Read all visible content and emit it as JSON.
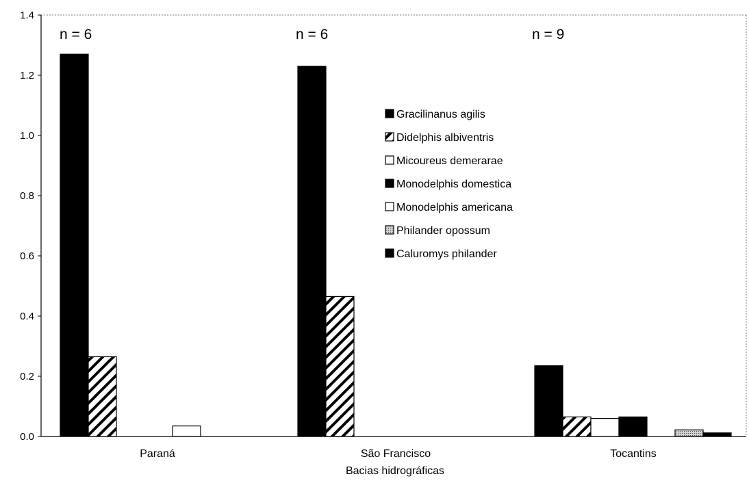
{
  "chart_data": {
    "type": "bar",
    "title": "",
    "xlabel": "Bacias hidrográficas",
    "ylabel": "",
    "ylim": [
      0,
      1.4
    ],
    "yticks": [
      "0.0",
      "0.2",
      "0.4",
      "0.6",
      "0.8",
      "1.0",
      "1.2",
      "1.4"
    ],
    "categories": [
      "Paraná",
      "São Francisco",
      "Tocantins"
    ],
    "sample_sizes": [
      "n = 6",
      "n = 6",
      "n = 9"
    ],
    "legend_position": "center-right",
    "grid": false,
    "series": [
      {
        "name": "Gracilinanus agilis",
        "values": [
          1.27,
          1.23,
          0.235
        ],
        "fill": "solid",
        "color": "#000000"
      },
      {
        "name": "Didelphis albiventris",
        "values": [
          0.265,
          0.465,
          0.065
        ],
        "fill": "hatch",
        "color": "#000000"
      },
      {
        "name": "Micoureus demerarae",
        "values": [
          0.0,
          0.0,
          0.06
        ],
        "fill": "white",
        "color": "#ffffff"
      },
      {
        "name": "Monodelphis domestica",
        "values": [
          0.0,
          0.0,
          0.065
        ],
        "fill": "solid",
        "color": "#000000"
      },
      {
        "name": "Monodelphis americana",
        "values": [
          0.035,
          0.0,
          0.0
        ],
        "fill": "white",
        "color": "#ffffff"
      },
      {
        "name": "Philander opossum",
        "values": [
          0.0,
          0.0,
          0.022
        ],
        "fill": "dotted",
        "color": "#bbbbbb"
      },
      {
        "name": "Caluromys philander",
        "values": [
          0.0,
          0.0,
          0.012
        ],
        "fill": "solid",
        "color": "#000000"
      }
    ]
  }
}
